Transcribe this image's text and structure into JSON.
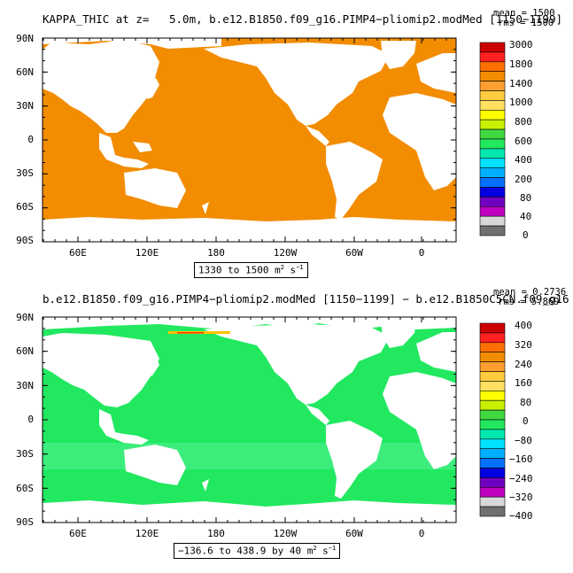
{
  "colors": {
    "ocean_top": "#f28c00",
    "ocean_bottom": "#22e860",
    "land": "#ffffff",
    "anomaly_warm": "#ffc000",
    "anomaly_cool": "#00e0c0"
  },
  "top_panel": {
    "title": "KAPPA_THIC at z=   5.0m, b.e12.B1850.f09_g16.PIMP4−pliomip2.modMed [1150−1199]",
    "stat_mean": "mean = 1500",
    "stat_rms": "rms = 1500",
    "range_main": "1330 to 1500 m",
    "range_exp": "2",
    "range_tail": " s",
    "range_tail_exp": "−1",
    "colorbar_labels": [
      "3000",
      "1800",
      "1400",
      "1000",
      "800",
      "600",
      "400",
      "200",
      "80",
      "40",
      "0"
    ],
    "colorbar_colors": [
      "#cc0000",
      "#ff2020",
      "#ff7000",
      "#f28c00",
      "#ff9e30",
      "#ffcc40",
      "#ffe060",
      "#ffff00",
      "#c8f000",
      "#40d840",
      "#22e860",
      "#00e8b0",
      "#00e0ff",
      "#00b0ff",
      "#0070ff",
      "#0000e0",
      "#7000c0",
      "#c000c0",
      "#d8d8d8",
      "#707070"
    ]
  },
  "bottom_panel": {
    "title": "b.e12.B1850.f09_g16.PIMP4−pliomip2.modMed [1150−1199] − b.e12.B1850C5CN.f09_g16",
    "stat_mean": "mean = 0.2736",
    "stat_rms": "rms = 5.869",
    "range_main": "−136.6 to 438.9 by 40 m",
    "range_exp": "2",
    "range_tail": " s",
    "range_tail_exp": "−1",
    "colorbar_labels": [
      "400",
      "320",
      "240",
      "160",
      "80",
      "0",
      "−80",
      "−160",
      "−240",
      "−320",
      "−400"
    ],
    "colorbar_colors": [
      "#cc0000",
      "#ff2020",
      "#ff7000",
      "#f28c00",
      "#ff9e30",
      "#ffcc40",
      "#ffe060",
      "#ffff00",
      "#c8f000",
      "#40d840",
      "#22e860",
      "#00e8b0",
      "#00e0ff",
      "#00b0ff",
      "#0070ff",
      "#0000e0",
      "#7000c0",
      "#c000c0",
      "#d8d8d8",
      "#707070"
    ]
  },
  "axes": {
    "lat_labels": [
      "90N",
      "60N",
      "30N",
      "0",
      "30S",
      "60S",
      "90S"
    ],
    "lon_labels": [
      "60E",
      "120E",
      "180",
      "120W",
      "60W",
      "0"
    ]
  }
}
